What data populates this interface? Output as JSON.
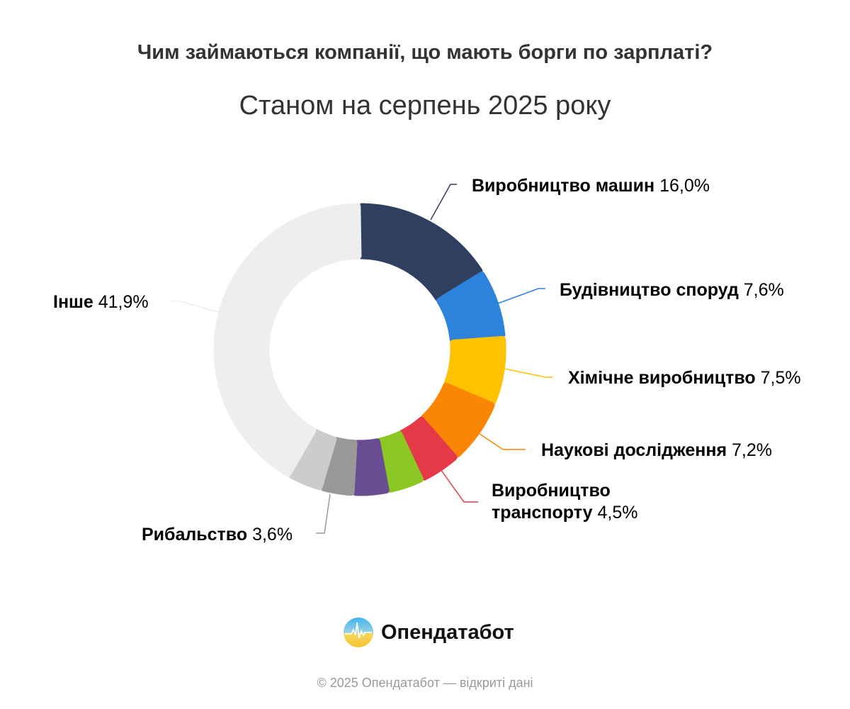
{
  "chart_data": {
    "type": "pie",
    "title": "Чим займаються компанії, що мають борги по зарплаті?",
    "subtitle": "Станом на серпень 2025 року",
    "slices": [
      {
        "name": "Виробництво машин",
        "value": 16.0,
        "value_label": "16,0%",
        "color": "#2e3f5f",
        "labeled": true
      },
      {
        "name": "Будівництво споруд",
        "value": 7.6,
        "value_label": "7,6%",
        "color": "#2d82dc",
        "labeled": true
      },
      {
        "name": "Хімічне виробництво",
        "value": 7.5,
        "value_label": "7,5%",
        "color": "#fec200",
        "labeled": true
      },
      {
        "name": "Наукові дослідження",
        "value": 7.2,
        "value_label": "7,2%",
        "color": "#fb8604",
        "labeled": true
      },
      {
        "name": "Виробництво",
        "name2": "транспорту",
        "value": 4.5,
        "value_label": "4,5%",
        "color": "#e63947",
        "labeled": true
      },
      {
        "name": "",
        "value": 4.0,
        "color": "#8cc823",
        "labeled": false
      },
      {
        "name": "",
        "value": 3.9,
        "color": "#6a4c93",
        "labeled": false
      },
      {
        "name": "Рибальство",
        "value": 3.6,
        "value_label": "3,6%",
        "color": "#999999",
        "labeled": true
      },
      {
        "name": "",
        "value": 3.8,
        "color": "#cccccc",
        "labeled": false
      },
      {
        "name": "Інше",
        "value": 41.9,
        "value_label": "41,9%",
        "color": "#eeeeee",
        "labeled": true
      }
    ]
  },
  "brand": "Опендатабот",
  "footer": "© 2025 Опендатабот — відкриті дані"
}
